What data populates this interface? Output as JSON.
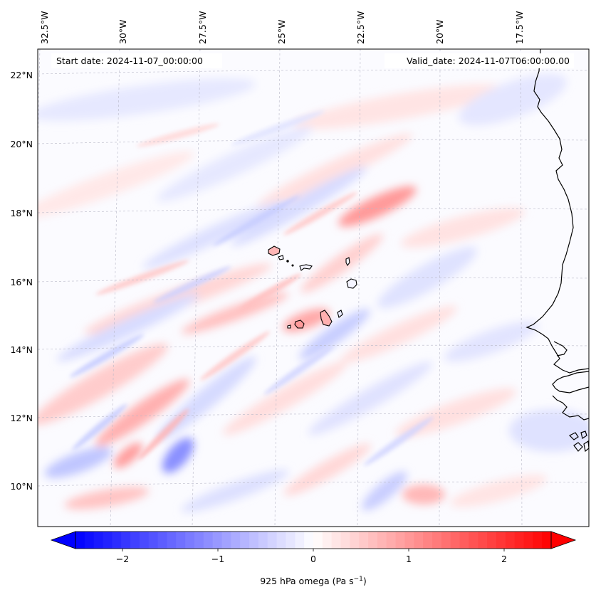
{
  "header": {
    "start_label": "Start date: 2024-11-07_00:00:00",
    "valid_label": "Valid_date: 2024-11-07T06:00:00.00"
  },
  "axes": {
    "lon_labels": [
      "32.5°W",
      "30°W",
      "27.5°W",
      "25°W",
      "22.5°W",
      "20°W",
      "17.5°W"
    ],
    "lat_labels": [
      "22°N",
      "20°N",
      "18°N",
      "16°N",
      "14°N",
      "12°N",
      "10°N"
    ]
  },
  "colorbar": {
    "ticks": [
      "−2",
      "−1",
      "0",
      "1",
      "2"
    ],
    "label": "925 hPa omega (Pa s",
    "label_unit_exp": "−1",
    "label_close": ")",
    "range": [
      -2.6,
      2.6
    ],
    "step": 0.1
  },
  "colors": {
    "negative": "#0000ff",
    "positive": "#ff0000",
    "neutral": "#ffffff",
    "coast": "#000000",
    "grid": "#b8b8c8"
  }
}
